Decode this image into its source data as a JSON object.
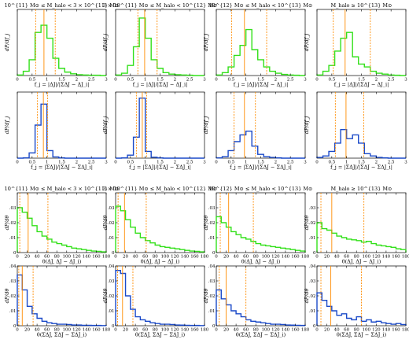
{
  "colors": {
    "green": "#33e01a",
    "blue": "#1a49c8",
    "vline": "#ff8c00",
    "axis": "#000000"
  },
  "row_titles": [
    [
      "10^{11} M⊙ ≤ M_halo < 3 × 10^{11} M⊙",
      "3 × 10^{11} M⊙ ≤ M_halo < 10^{12} M⊙",
      "10^{12} M⊙ ≤ M_halo < 10^{13} M⊙",
      "M_halo ≥ 10^{13} M⊙"
    ],
    [],
    [
      "10^{11} M⊙ ≤ M_halo < 3 × 10^{11} M⊙",
      "3 × 10^{11} M⊙ ≤ M_halo < 10^{12} M⊙",
      "10^{12} M⊙ ≤ M_halo < 10^{13} M⊙",
      "M_halo ≥ 10^{13} M⊙"
    ],
    []
  ],
  "row_xlabels": [
    "f_j = |ΔJ|/|ΣΔJ − ΔJ_i|",
    "f_j = |ΣΔJ|/|ΣΔJ − ΣΔJ_i|",
    "θ(ΔJ, ΔJ − ΔJ_i)",
    "θ(ΣΔJ, ΣΔJ − ΣΔJ_i)"
  ],
  "row_ylabels": [
    "dP/df_j",
    "dP/df_j",
    "dP/dθ",
    "dP/dθ"
  ],
  "chart_data": [
    {
      "type": "histogram",
      "row": 0,
      "col": 0,
      "color": "green",
      "title": "10^{11} M⊙ ≤ M_halo < 3 × 10^{11} M⊙",
      "xlabel": "f_j = |ΔJ|/|ΣΔJ − ΔJ_i|",
      "ylabel": "dP/df_j",
      "xlim": [
        0,
        3
      ],
      "ylim": [
        0,
        2.3
      ],
      "xticks": [
        0,
        0.5,
        1,
        1.5,
        2,
        2.5,
        3
      ],
      "yticks": [],
      "bin_edges": [
        0,
        0.2,
        0.4,
        0.6,
        0.8,
        1.0,
        1.2,
        1.4,
        1.6,
        1.8,
        2.0,
        2.2,
        2.4,
        2.6,
        2.8,
        3.0
      ],
      "values": [
        0.02,
        0.15,
        0.55,
        1.5,
        1.75,
        1.3,
        0.6,
        0.25,
        0.12,
        0.06,
        0.03,
        0.02,
        0.01,
        0.01,
        0.0
      ],
      "vlines": [
        0.62,
        0.9,
        1.28
      ]
    },
    {
      "type": "histogram",
      "row": 0,
      "col": 1,
      "color": "green",
      "title": "3 × 10^{11} M⊙ ≤ M_halo < 10^{12} M⊙",
      "xlabel": "f_j = |ΔJ|/|ΣΔJ − ΔJ_i|",
      "ylabel": "dP/df_j",
      "xlim": [
        0,
        3
      ],
      "ylim": [
        0,
        2.3
      ],
      "xticks": [
        0,
        0.5,
        1,
        1.5,
        2,
        2.5,
        3
      ],
      "yticks": [],
      "bin_edges": [
        0,
        0.2,
        0.4,
        0.6,
        0.8,
        1.0,
        1.2,
        1.4,
        1.6,
        1.8,
        2.0,
        2.2,
        2.4,
        2.6,
        2.8,
        3.0
      ],
      "values": [
        0.02,
        0.08,
        0.35,
        1.0,
        2.0,
        1.3,
        0.55,
        0.25,
        0.1,
        0.05,
        0.03,
        0.02,
        0.01,
        0.0,
        0.0
      ],
      "vlines": [
        0.75,
        0.98,
        1.4
      ]
    },
    {
      "type": "histogram",
      "row": 0,
      "col": 2,
      "color": "green",
      "title": "10^{12} M⊙ ≤ M_halo < 10^{13} M⊙",
      "xlabel": "f_j = |ΔJ|/|ΣΔJ − ΔJ_i|",
      "ylabel": "dP/df_j",
      "xlim": [
        0,
        3
      ],
      "ylim": [
        0,
        2.3
      ],
      "xticks": [
        0,
        0.5,
        1,
        1.5,
        2,
        2.5,
        3
      ],
      "yticks": [],
      "bin_edges": [
        0,
        0.2,
        0.4,
        0.6,
        0.8,
        1.0,
        1.2,
        1.4,
        1.6,
        1.8,
        2.0,
        2.2,
        2.4,
        2.6,
        2.8,
        3.0
      ],
      "values": [
        0.02,
        0.1,
        0.3,
        0.7,
        1.05,
        1.6,
        0.9,
        0.55,
        0.3,
        0.15,
        0.08,
        0.04,
        0.02,
        0.01,
        0.0
      ],
      "vlines": [
        0.52,
        0.95,
        1.7
      ]
    },
    {
      "type": "histogram",
      "row": 0,
      "col": 3,
      "color": "green",
      "title": "M_halo ≥ 10^{13} M⊙",
      "xlabel": "f_j = |ΔJ|/|ΣΔJ − ΔJ_i|",
      "ylabel": "dP/df_j",
      "xlim": [
        0,
        3
      ],
      "ylim": [
        0,
        2.3
      ],
      "xticks": [
        0,
        0.5,
        1,
        1.5,
        2,
        2.5,
        3
      ],
      "yticks": [],
      "bin_edges": [
        0,
        0.2,
        0.4,
        0.6,
        0.8,
        1.0,
        1.2,
        1.4,
        1.6,
        1.8,
        2.0,
        2.2,
        2.4,
        2.6,
        2.8,
        3.0
      ],
      "values": [
        0.02,
        0.15,
        0.35,
        0.85,
        1.3,
        1.5,
        0.65,
        0.4,
        0.3,
        0.15,
        0.08,
        0.05,
        0.02,
        0.01,
        0.0
      ],
      "vlines": [
        0.55,
        0.95,
        1.8
      ]
    },
    {
      "type": "histogram",
      "row": 1,
      "col": 0,
      "color": "blue",
      "title": "",
      "xlabel": "f_j = |ΣΔJ|/|ΣΔJ − ΣΔJ_i|",
      "ylabel": "dP/df_j",
      "xlim": [
        0,
        3
      ],
      "ylim": [
        0,
        4.4
      ],
      "xticks": [
        0,
        0.5,
        1,
        1.5,
        2,
        2.5,
        3
      ],
      "yticks": [],
      "bin_edges": [
        0,
        0.2,
        0.4,
        0.6,
        0.8,
        1.0,
        1.2,
        1.4,
        1.6,
        1.8,
        2.0,
        2.2,
        2.4,
        2.6,
        2.8,
        3.0
      ],
      "values": [
        0.0,
        0.02,
        0.35,
        2.2,
        3.6,
        0.5,
        0.08,
        0.02,
        0.0,
        0.0,
        0.0,
        0.0,
        0.0,
        0.0,
        0.0
      ],
      "vlines": [
        0.68,
        0.88,
        1.02
      ]
    },
    {
      "type": "histogram",
      "row": 1,
      "col": 1,
      "color": "blue",
      "title": "",
      "xlabel": "f_j = |ΣΔJ|/|ΣΔJ − ΣΔJ_i|",
      "ylabel": "dP/df_j",
      "xlim": [
        0,
        3
      ],
      "ylim": [
        0,
        4.4
      ],
      "xticks": [
        0,
        0.5,
        1,
        1.5,
        2,
        2.5,
        3
      ],
      "yticks": [],
      "bin_edges": [
        0,
        0.2,
        0.4,
        0.6,
        0.8,
        1.0,
        1.2,
        1.4,
        1.6,
        1.8,
        2.0,
        2.2,
        2.4,
        2.6,
        2.8,
        3.0
      ],
      "values": [
        0.0,
        0.02,
        0.2,
        1.4,
        4.0,
        0.45,
        0.06,
        0.02,
        0.0,
        0.0,
        0.0,
        0.0,
        0.0,
        0.0,
        0.0
      ],
      "vlines": [
        0.7,
        0.9,
        1.05
      ]
    },
    {
      "type": "histogram",
      "row": 1,
      "col": 2,
      "color": "blue",
      "title": "",
      "xlabel": "f_j = |ΣΔJ|/|ΣΔJ − ΣΔJ_i|",
      "ylabel": "dP/df_j",
      "xlim": [
        0,
        3
      ],
      "ylim": [
        0,
        4.4
      ],
      "xticks": [
        0,
        0.5,
        1,
        1.5,
        2,
        2.5,
        3
      ],
      "yticks": [],
      "bin_edges": [
        0,
        0.2,
        0.4,
        0.6,
        0.8,
        1.0,
        1.2,
        1.4,
        1.6,
        1.8,
        2.0,
        2.2,
        2.4,
        2.6,
        2.8,
        3.0
      ],
      "values": [
        0.02,
        0.1,
        0.5,
        1.1,
        1.55,
        1.8,
        0.8,
        0.25,
        0.1,
        0.05,
        0.02,
        0.0,
        0.0,
        0.0,
        0.0
      ],
      "vlines": [
        0.6,
        0.95,
        1.32
      ]
    },
    {
      "type": "histogram",
      "row": 1,
      "col": 3,
      "color": "blue",
      "title": "",
      "xlabel": "f_j = |ΣΔJ|/|ΣΔJ − ΣΔJ_i|",
      "ylabel": "dP/df_j",
      "xlim": [
        0,
        3
      ],
      "ylim": [
        0,
        4.4
      ],
      "xticks": [
        0,
        0.5,
        1,
        1.5,
        2,
        2.5,
        3
      ],
      "yticks": [],
      "bin_edges": [
        0,
        0.2,
        0.4,
        0.6,
        0.8,
        1.0,
        1.2,
        1.4,
        1.6,
        1.8,
        2.0,
        2.2,
        2.4,
        2.6,
        2.8,
        3.0
      ],
      "values": [
        0.05,
        0.15,
        0.45,
        1.0,
        1.9,
        1.3,
        1.55,
        1.0,
        0.3,
        0.15,
        0.05,
        0.02,
        0.0,
        0.0,
        0.0
      ],
      "vlines": [
        0.62,
        0.98,
        1.58
      ]
    },
    {
      "type": "histogram",
      "row": 2,
      "col": 0,
      "color": "green",
      "title": "10^{11} M⊙ ≤ M_halo < 3 × 10^{11} M⊙",
      "xlabel": "θ(ΔJ, ΔJ − ΔJ_i)",
      "ylabel": "dP/dθ",
      "xlim": [
        0,
        180
      ],
      "ylim": [
        0,
        0.04
      ],
      "xticks": [
        0,
        20,
        40,
        60,
        80,
        100,
        120,
        140,
        160,
        180
      ],
      "yticks": [
        0,
        0.01,
        0.02,
        0.03
      ],
      "bin_edges": [
        0,
        10,
        20,
        30,
        40,
        50,
        60,
        70,
        80,
        90,
        100,
        110,
        120,
        130,
        140,
        150,
        160,
        170,
        180
      ],
      "values": [
        0.03,
        0.027,
        0.023,
        0.018,
        0.014,
        0.011,
        0.009,
        0.007,
        0.006,
        0.005,
        0.004,
        0.003,
        0.0025,
        0.002,
        0.0015,
        0.001,
        0.0008,
        0.0005
      ],
      "vlines": [
        5,
        22,
        62
      ]
    },
    {
      "type": "histogram",
      "row": 2,
      "col": 1,
      "color": "green",
      "title": "3 × 10^{11} M⊙ ≤ M_halo < 10^{12} M⊙",
      "xlabel": "θ(ΔJ, ΔJ − ΔJ_i)",
      "ylabel": "dP/dθ",
      "xlim": [
        0,
        180
      ],
      "ylim": [
        0,
        0.04
      ],
      "xticks": [
        0,
        20,
        40,
        60,
        80,
        100,
        120,
        140,
        160,
        180
      ],
      "yticks": [
        0,
        0.01,
        0.02,
        0.03
      ],
      "bin_edges": [
        0,
        10,
        20,
        30,
        40,
        50,
        60,
        70,
        80,
        90,
        100,
        110,
        120,
        130,
        140,
        150,
        160,
        170,
        180
      ],
      "values": [
        0.031,
        0.028,
        0.022,
        0.017,
        0.013,
        0.01,
        0.008,
        0.0065,
        0.005,
        0.004,
        0.0035,
        0.003,
        0.0025,
        0.002,
        0.0015,
        0.001,
        0.0008,
        0.0005
      ],
      "vlines": [
        5,
        18,
        62
      ]
    },
    {
      "type": "histogram",
      "row": 2,
      "col": 2,
      "color": "green",
      "title": "10^{12} M⊙ ≤ M_halo < 10^{13} M⊙",
      "xlabel": "θ(ΔJ, ΔJ − ΔJ_i)",
      "ylabel": "dP/dθ",
      "xlim": [
        0,
        180
      ],
      "ylim": [
        0,
        0.04
      ],
      "xticks": [
        0,
        20,
        40,
        60,
        80,
        100,
        120,
        140,
        160,
        180
      ],
      "yticks": [
        0,
        0.01,
        0.02,
        0.03
      ],
      "bin_edges": [
        0,
        10,
        20,
        30,
        40,
        50,
        60,
        70,
        80,
        90,
        100,
        110,
        120,
        130,
        140,
        150,
        160,
        170,
        180
      ],
      "values": [
        0.024,
        0.02,
        0.017,
        0.014,
        0.012,
        0.01,
        0.009,
        0.0075,
        0.006,
        0.005,
        0.0045,
        0.004,
        0.0035,
        0.003,
        0.0025,
        0.002,
        0.0015,
        0.001
      ],
      "vlines": [
        8,
        25,
        75
      ]
    },
    {
      "type": "histogram",
      "row": 2,
      "col": 3,
      "color": "green",
      "title": "M_halo ≥ 10^{13} M⊙",
      "xlabel": "θ(ΔJ, ΔJ − ΔJ_i)",
      "ylabel": "dP/dθ",
      "xlim": [
        0,
        180
      ],
      "ylim": [
        0,
        0.04
      ],
      "xticks": [
        0,
        20,
        40,
        60,
        80,
        100,
        120,
        140,
        160,
        180
      ],
      "yticks": [
        0,
        0.01,
        0.02,
        0.03
      ],
      "bin_edges": [
        0,
        10,
        20,
        30,
        40,
        50,
        60,
        70,
        80,
        90,
        100,
        110,
        120,
        130,
        140,
        150,
        160,
        170,
        180
      ],
      "values": [
        0.02,
        0.016,
        0.015,
        0.013,
        0.011,
        0.01,
        0.009,
        0.0085,
        0.008,
        0.007,
        0.0075,
        0.006,
        0.005,
        0.0045,
        0.004,
        0.0035,
        0.0025,
        0.002
      ],
      "vlines": [
        8,
        30,
        95
      ]
    },
    {
      "type": "histogram",
      "row": 3,
      "col": 0,
      "color": "blue",
      "title": "",
      "xlabel": "θ(ΣΔJ, ΣΔJ − ΣΔJ_i)",
      "ylabel": "dP/dθ",
      "xlim": [
        0,
        180
      ],
      "ylim": [
        0,
        0.04
      ],
      "xticks": [
        0,
        20,
        40,
        60,
        80,
        100,
        120,
        140,
        160,
        180
      ],
      "yticks": [
        0,
        0.01,
        0.02,
        0.03,
        0.04
      ],
      "bin_edges": [
        0,
        10,
        20,
        30,
        40,
        50,
        60,
        70,
        80,
        90,
        100,
        110,
        120,
        130,
        140,
        150,
        160,
        170,
        180
      ],
      "values": [
        0.034,
        0.024,
        0.013,
        0.008,
        0.005,
        0.003,
        0.002,
        0.0015,
        0.001,
        0.001,
        0.0008,
        0.0005,
        0.0005,
        0.0003,
        0.0003,
        0.0002,
        0.0002,
        0.0001
      ],
      "vlines": [
        3,
        10,
        32
      ]
    },
    {
      "type": "histogram",
      "row": 3,
      "col": 1,
      "color": "blue",
      "title": "",
      "xlabel": "θ(ΣΔJ, ΣΔJ − ΣΔJ_i)",
      "ylabel": "dP/dθ",
      "xlim": [
        0,
        180
      ],
      "ylim": [
        0,
        0.04
      ],
      "xticks": [
        0,
        20,
        40,
        60,
        80,
        100,
        120,
        140,
        160,
        180
      ],
      "yticks": [
        0,
        0.01,
        0.02,
        0.03,
        0.04
      ],
      "bin_edges": [
        0,
        10,
        20,
        30,
        40,
        50,
        60,
        70,
        80,
        90,
        100,
        110,
        120,
        130,
        140,
        150,
        160,
        170,
        180
      ],
      "values": [
        0.037,
        0.035,
        0.02,
        0.011,
        0.006,
        0.004,
        0.003,
        0.002,
        0.0015,
        0.001,
        0.001,
        0.0008,
        0.0005,
        0.0004,
        0.0003,
        0.0002,
        0.0002,
        0.0001
      ],
      "vlines": [
        4,
        14,
        35
      ]
    },
    {
      "type": "histogram",
      "row": 3,
      "col": 2,
      "color": "blue",
      "title": "",
      "xlabel": "θ(ΣΔJ, ΣΔJ − ΣΔJ_i)",
      "ylabel": "dP/dθ",
      "xlim": [
        0,
        180
      ],
      "ylim": [
        0,
        0.04
      ],
      "xticks": [
        0,
        20,
        40,
        60,
        80,
        100,
        120,
        140,
        160,
        180
      ],
      "yticks": [
        0,
        0.01,
        0.02,
        0.03,
        0.04
      ],
      "bin_edges": [
        0,
        10,
        20,
        30,
        40,
        50,
        60,
        70,
        80,
        90,
        100,
        110,
        120,
        130,
        140,
        150,
        160,
        170,
        180
      ],
      "values": [
        0.024,
        0.018,
        0.014,
        0.01,
        0.008,
        0.006,
        0.004,
        0.003,
        0.0025,
        0.002,
        0.0015,
        0.001,
        0.001,
        0.0008,
        0.0005,
        0.0004,
        0.0003,
        0.0002
      ],
      "vlines": [
        6,
        20,
        60
      ]
    },
    {
      "type": "histogram",
      "row": 3,
      "col": 3,
      "color": "blue",
      "title": "",
      "xlabel": "θ(ΣΔJ, ΣΔJ − ΣΔJ_i)",
      "ylabel": "dP/dθ",
      "xlim": [
        0,
        180
      ],
      "ylim": [
        0,
        0.04
      ],
      "xticks": [
        0,
        20,
        40,
        60,
        80,
        100,
        120,
        140,
        160,
        180
      ],
      "yticks": [
        0,
        0.01,
        0.02,
        0.03,
        0.04
      ],
      "bin_edges": [
        0,
        10,
        20,
        30,
        40,
        50,
        60,
        70,
        80,
        90,
        100,
        110,
        120,
        130,
        140,
        150,
        160,
        170,
        180
      ],
      "values": [
        0.022,
        0.017,
        0.013,
        0.01,
        0.007,
        0.008,
        0.005,
        0.004,
        0.006,
        0.003,
        0.004,
        0.0025,
        0.003,
        0.002,
        0.0015,
        0.001,
        0.0015,
        0.0008
      ],
      "vlines": [
        8,
        28,
        90
      ]
    }
  ]
}
